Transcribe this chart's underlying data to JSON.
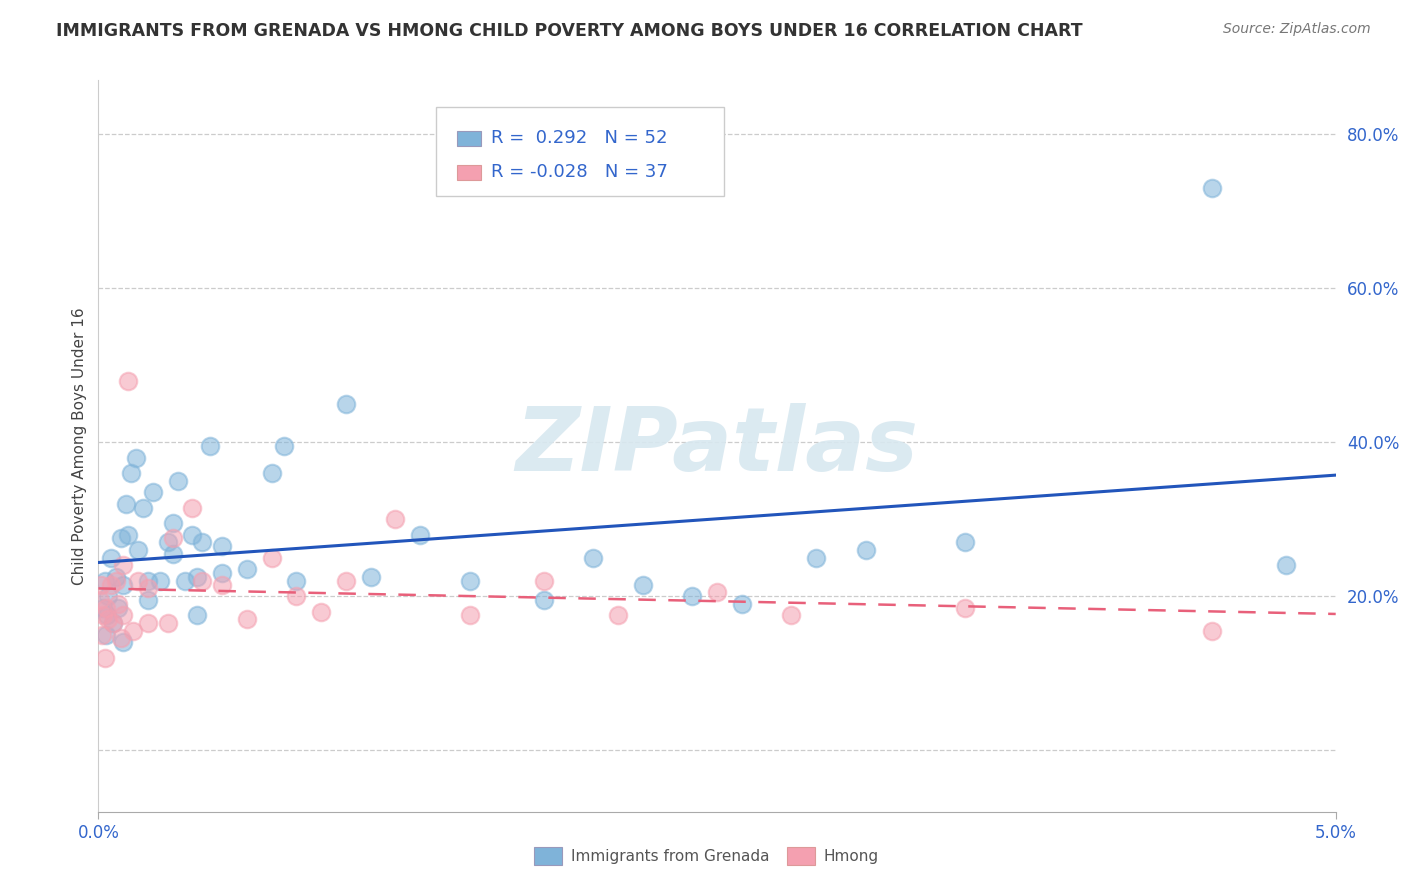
{
  "title": "IMMIGRANTS FROM GRENADA VS HMONG CHILD POVERTY AMONG BOYS UNDER 16 CORRELATION CHART",
  "source": "Source: ZipAtlas.com",
  "ylabel": "Child Poverty Among Boys Under 16",
  "x_lim": [
    0.0,
    0.05
  ],
  "y_lim": [
    -0.08,
    0.87
  ],
  "y_ticks": [
    0.0,
    0.2,
    0.4,
    0.6,
    0.8
  ],
  "y_tick_labels": [
    "",
    "20.0%",
    "40.0%",
    "60.0%",
    "80.0%"
  ],
  "x_ticks": [
    0.0,
    0.05
  ],
  "x_tick_labels": [
    "0.0%",
    "5.0%"
  ],
  "legend_label1": "Immigrants from Grenada",
  "legend_label2": "Hmong",
  "series1_R": 0.292,
  "series1_N": 52,
  "series2_R": -0.028,
  "series2_N": 37,
  "series1_dot_color": "#7FB3D9",
  "series2_dot_color": "#F4A0B0",
  "series1_line_color": "#2255BB",
  "series2_line_color": "#E8607A",
  "watermark": "ZIPatlas",
  "grenada_x": [
    0.0002,
    0.00025,
    0.0003,
    0.00035,
    0.0004,
    0.0005,
    0.0006,
    0.0007,
    0.0008,
    0.0009,
    0.001,
    0.001,
    0.0011,
    0.0012,
    0.0013,
    0.0015,
    0.0016,
    0.0018,
    0.002,
    0.002,
    0.0022,
    0.0025,
    0.0028,
    0.003,
    0.003,
    0.0032,
    0.0035,
    0.0038,
    0.004,
    0.004,
    0.0042,
    0.0045,
    0.005,
    0.005,
    0.006,
    0.007,
    0.0075,
    0.008,
    0.01,
    0.011,
    0.013,
    0.015,
    0.018,
    0.02,
    0.022,
    0.024,
    0.026,
    0.029,
    0.031,
    0.035,
    0.045,
    0.048
  ],
  "grenada_y": [
    0.185,
    0.22,
    0.15,
    0.175,
    0.2,
    0.25,
    0.165,
    0.225,
    0.185,
    0.275,
    0.14,
    0.215,
    0.32,
    0.28,
    0.36,
    0.38,
    0.26,
    0.315,
    0.195,
    0.22,
    0.335,
    0.22,
    0.27,
    0.255,
    0.295,
    0.35,
    0.22,
    0.28,
    0.175,
    0.225,
    0.27,
    0.395,
    0.23,
    0.265,
    0.235,
    0.36,
    0.395,
    0.22,
    0.45,
    0.225,
    0.28,
    0.22,
    0.195,
    0.25,
    0.215,
    0.2,
    0.19,
    0.25,
    0.26,
    0.27,
    0.73,
    0.24
  ],
  "hmong_x": [
    8e-05,
    0.0001,
    0.00015,
    0.0002,
    0.00025,
    0.0003,
    0.0004,
    0.0005,
    0.0006,
    0.0007,
    0.0008,
    0.0009,
    0.001,
    0.001,
    0.0012,
    0.0014,
    0.0016,
    0.002,
    0.002,
    0.0028,
    0.003,
    0.0038,
    0.0042,
    0.005,
    0.006,
    0.007,
    0.008,
    0.009,
    0.01,
    0.012,
    0.015,
    0.018,
    0.021,
    0.025,
    0.028,
    0.035,
    0.045
  ],
  "hmong_y": [
    0.195,
    0.215,
    0.15,
    0.175,
    0.12,
    0.185,
    0.17,
    0.215,
    0.165,
    0.22,
    0.19,
    0.145,
    0.24,
    0.175,
    0.48,
    0.155,
    0.22,
    0.165,
    0.21,
    0.165,
    0.275,
    0.315,
    0.22,
    0.215,
    0.17,
    0.25,
    0.2,
    0.18,
    0.22,
    0.3,
    0.175,
    0.22,
    0.175,
    0.205,
    0.175,
    0.185,
    0.155
  ]
}
